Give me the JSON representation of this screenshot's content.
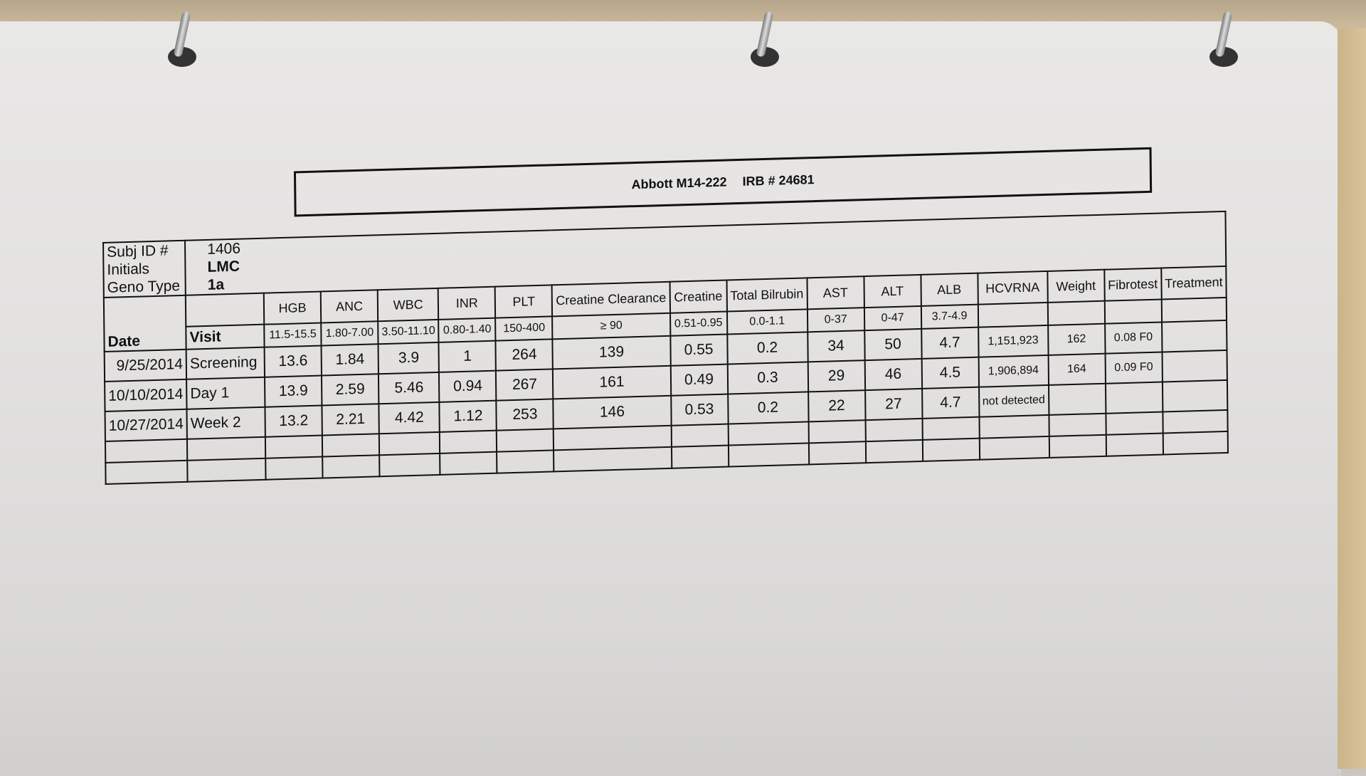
{
  "title": {
    "study": "Abbott M14-222",
    "irb": "IRB # 24681"
  },
  "subject": {
    "labels": [
      "Subj ID #",
      "Initials",
      "Geno Type"
    ],
    "values": [
      "1406",
      "LMC",
      "1a"
    ]
  },
  "columns": [
    {
      "name": "Date",
      "range": ""
    },
    {
      "name": "",
      "range": "Visit"
    },
    {
      "name": "HGB",
      "range": "11.5-15.5"
    },
    {
      "name": "ANC",
      "range": "1.80-7.00"
    },
    {
      "name": "WBC",
      "range": "3.50-11.10"
    },
    {
      "name": "INR",
      "range": "0.80-1.40"
    },
    {
      "name": "PLT",
      "range": "150-400"
    },
    {
      "name": "Creatine Clearance",
      "range": "≥ 90"
    },
    {
      "name": "Creatine",
      "range": "0.51-0.95"
    },
    {
      "name": "Total Bilrubin",
      "range": "0.0-1.1"
    },
    {
      "name": "AST",
      "range": "0-37"
    },
    {
      "name": "ALT",
      "range": "0-47"
    },
    {
      "name": "ALB",
      "range": "3.7-4.9"
    },
    {
      "name": "HCVRNA",
      "range": ""
    },
    {
      "name": "Weight",
      "range": ""
    },
    {
      "name": "Fibrotest",
      "range": ""
    },
    {
      "name": "Treatment",
      "range": ""
    }
  ],
  "rows": [
    [
      "9/25/2014",
      "Screening",
      "13.6",
      "1.84",
      "3.9",
      "1",
      "264",
      "139",
      "0.55",
      "0.2",
      "34",
      "50",
      "4.7",
      "1,151,923",
      "162",
      "0.08 F0",
      ""
    ],
    [
      "10/10/2014",
      "Day 1",
      "13.9",
      "2.59",
      "5.46",
      "0.94",
      "267",
      "161",
      "0.49",
      "0.3",
      "29",
      "46",
      "4.5",
      "1,906,894",
      "164",
      "0.09 F0",
      ""
    ],
    [
      "10/27/2014",
      "Week 2",
      "13.2",
      "2.21",
      "4.42",
      "1.12",
      "253",
      "146",
      "0.53",
      "0.2",
      "22",
      "27",
      "4.7",
      "not detected",
      "",
      "",
      ""
    ],
    [
      "",
      "",
      "",
      "",
      "",
      "",
      "",
      "",
      "",
      "",
      "",
      "",
      "",
      "",
      "",
      "",
      ""
    ],
    [
      "",
      "",
      "",
      "",
      "",
      "",
      "",
      "",
      "",
      "",
      "",
      "",
      "",
      "",
      "",
      "",
      ""
    ]
  ]
}
